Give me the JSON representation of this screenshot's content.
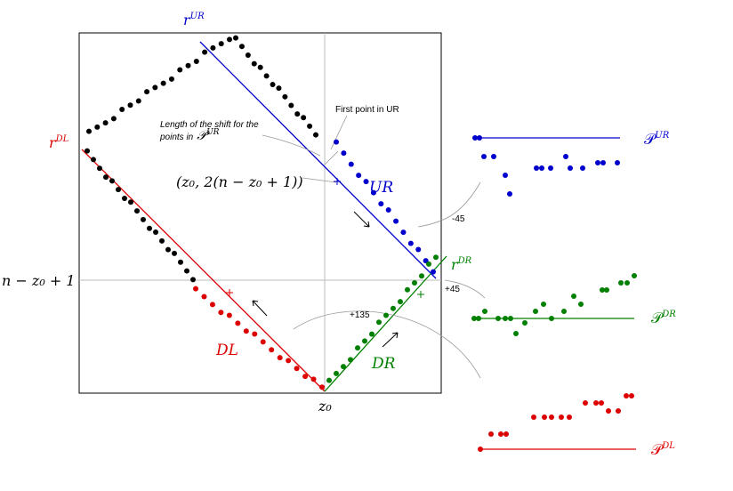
{
  "labels": {
    "r_ur": {
      "base": "r",
      "sup": "UR"
    },
    "r_dl": {
      "base": "r",
      "sup": "DL"
    },
    "r_dr": {
      "base": "r",
      "sup": "DR"
    },
    "level": "n − z₀ + 1",
    "z0": "z₀",
    "point": "(z₀, 2(n − z₀ + 1))",
    "ur": "UR",
    "dl": "DL",
    "dr": "DR",
    "shift_note": [
      "Length of the shift for the",
      "points in"
    ],
    "shift_set": {
      "base": "𝒫",
      "sup": "UR"
    },
    "first_point": "First point in UR",
    "rot_ur": "-45",
    "rot_dr": "+45",
    "rot_dl": "+135",
    "p_ur": {
      "base": "𝒫",
      "sup": "UR"
    },
    "p_dr": {
      "base": "𝒫",
      "sup": "DR"
    },
    "p_dl": {
      "base": "𝒫",
      "sup": "DL"
    }
  }
}
